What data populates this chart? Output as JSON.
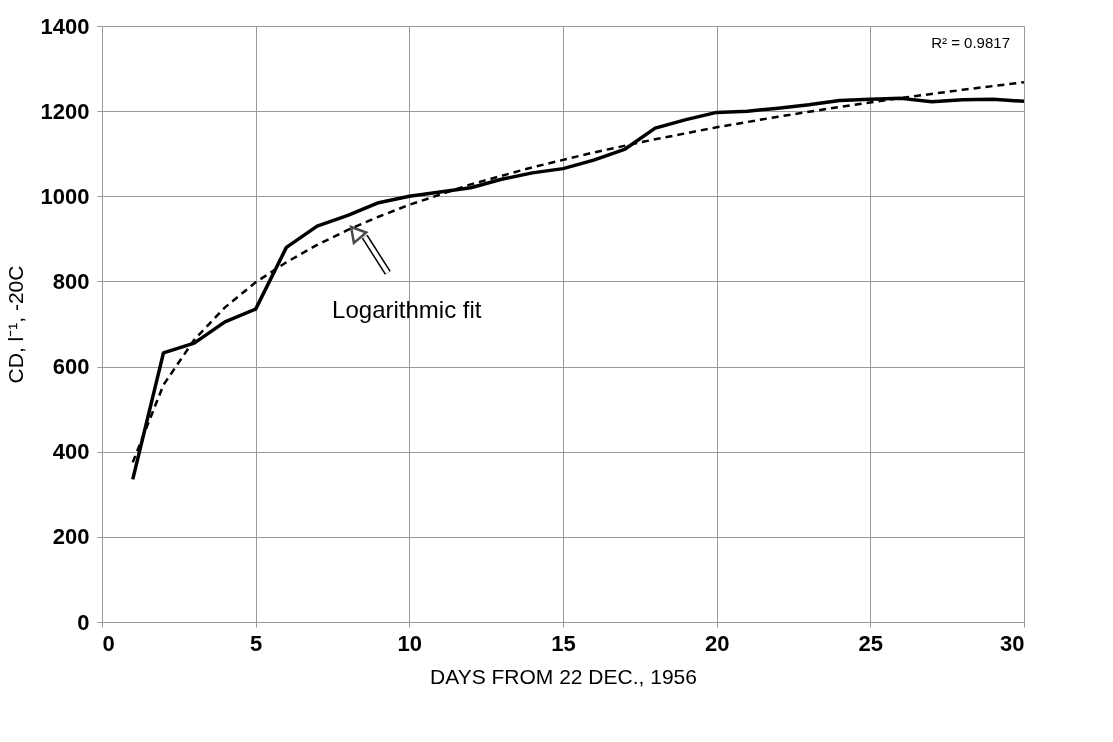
{
  "chart_data": {
    "type": "line",
    "xlabel": "DAYS FROM 22 DEC., 1956",
    "ylabel": "CD, l⁻¹, -20C",
    "xlim": [
      0,
      30
    ],
    "xticks": [
      0,
      5,
      10,
      15,
      20,
      25,
      30
    ],
    "ylim": [
      0,
      1400
    ],
    "yticks": [
      0,
      200,
      400,
      600,
      800,
      1000,
      1200,
      1400
    ],
    "grid": true,
    "marker": "none",
    "series": [
      {
        "color": "#000000",
        "line_style": "solid",
        "x": [
          1,
          2,
          3,
          4,
          5,
          6,
          7,
          8,
          9,
          10,
          11,
          12,
          13,
          14,
          15,
          16,
          17,
          18,
          19,
          20,
          21,
          22,
          23,
          24,
          25,
          26,
          27,
          28,
          29,
          30
        ],
        "values": [
          335,
          632,
          655,
          705,
          735,
          880,
          930,
          955,
          985,
          1000,
          1010,
          1020,
          1040,
          1055,
          1065,
          1085,
          1110,
          1160,
          1180,
          1197,
          1200,
          1207,
          1215,
          1225,
          1228,
          1230,
          1222,
          1227,
          1228,
          1223
        ]
      },
      {
        "type": "line",
        "color": "#000000",
        "line_style": "dashed",
        "x": [
          1,
          2,
          3,
          4,
          5,
          6,
          7,
          8,
          9,
          10,
          12,
          14,
          16,
          18,
          20,
          22,
          24,
          26,
          28,
          30
        ],
        "values": [
          375,
          557,
          663,
          739,
          798,
          845,
          886,
          921,
          952,
          980,
          1028,
          1068,
          1103,
          1134,
          1162,
          1187,
          1210,
          1231,
          1250,
          1268
        ]
      }
    ],
    "annotations": [
      {
        "text": "Logarithmic fit",
        "x": 8.3,
        "y": 930
      },
      "R² = 0.9817"
    ]
  }
}
